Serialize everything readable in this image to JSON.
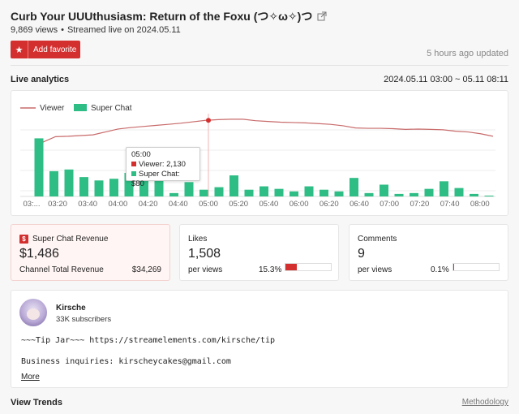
{
  "header": {
    "title": "Curb Your UUUthusiasm: Return of the Foxu (つ✧ω✧)つ",
    "views": "9,869 views",
    "separator": "•",
    "streamed": "Streamed live on 2024.05.11",
    "favorite_label": "Add favorite",
    "updated": "5 hours ago updated"
  },
  "analytics": {
    "title": "Live analytics",
    "range": "2024.05.11 03:00 ~ 05.11 08:11"
  },
  "colors": {
    "accent": "#d32f2f",
    "viewer_line": "#c96a6a",
    "superchat": "#2ebd85"
  },
  "chart_data": {
    "type": "bar+line",
    "legend": [
      "Viewer",
      "Super Chat"
    ],
    "legend_position": "top-left",
    "x_ticks": [
      "03:...",
      "03:20",
      "03:40",
      "04:00",
      "04:20",
      "04:40",
      "05:00",
      "05:20",
      "05:40",
      "06:00",
      "06:20",
      "06:40",
      "07:00",
      "07:20",
      "07:40",
      "08:00"
    ],
    "series": [
      {
        "name": "Viewer",
        "type": "line",
        "values": [
          1500,
          1650,
          1660,
          1680,
          1700,
          1780,
          1860,
          1900,
          1930,
          1960,
          1990,
          2020,
          2060,
          2100,
          2120,
          2130,
          2130,
          2090,
          2070,
          2050,
          2040,
          2030,
          2010,
          1990,
          1950,
          1890,
          1880,
          1880,
          1870,
          1850,
          1860,
          1850,
          1840,
          1800,
          1780,
          1730,
          1660
        ]
      },
      {
        "name": "Super Chat",
        "type": "bar",
        "values": [
          345,
          150,
          160,
          115,
          95,
          105,
          140,
          100,
          95,
          20,
          85,
          40,
          55,
          125,
          40,
          60,
          45,
          30,
          60,
          40,
          30,
          110,
          20,
          70,
          15,
          20,
          45,
          90,
          50,
          15,
          5
        ]
      }
    ],
    "grid": true,
    "tooltip": {
      "time": "05:00",
      "viewer": "Viewer: 2,130",
      "superchat": "Super Chat: $80"
    }
  },
  "stats": {
    "superchat": {
      "label": "Super Chat Revenue",
      "value": "$1,486",
      "sub": "Channel Total Revenue",
      "total": "$34,269"
    },
    "likes": {
      "label": "Likes",
      "value": "1,508",
      "sub": "per views",
      "pct": "15.3%",
      "fraction": 0.153
    },
    "comments": {
      "label": "Comments",
      "value": "9",
      "sub": "per views",
      "pct": "0.1%",
      "fraction": 0.001
    }
  },
  "channel": {
    "name": "Kirsche",
    "subscribers": "33K subscribers",
    "desc_line1": "~~~Tip Jar~~~ https://streamelements.com/kirsche/tip",
    "desc_line2": "Business inquiries: kirscheycakes@gmail.com",
    "more": "More"
  },
  "footer": {
    "trends": "View Trends",
    "methodology": "Methodology"
  }
}
